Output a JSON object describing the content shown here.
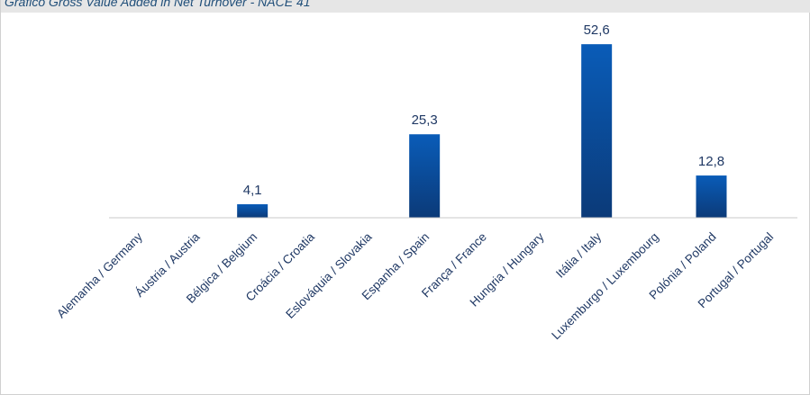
{
  "chart_data": {
    "type": "bar",
    "title": "Gráfico Gross Value Added in Net Turnover - NACE 41",
    "categories": [
      "Alemanha / Germany",
      "Áustria / Austria",
      "Bélgica / Belgium",
      "Croácia / Croatia",
      "Eslováquia / Slovakia",
      "Espanha / Spain",
      "França / France",
      "Hungria / Hungary",
      "Itália / Italy",
      "Luxemburgo / Luxembourg",
      "Polónia / Poland",
      "Portugal / Portugal"
    ],
    "values": [
      null,
      null,
      4.1,
      null,
      null,
      25.3,
      null,
      null,
      52.6,
      null,
      12.8,
      null
    ],
    "value_labels": [
      "",
      "",
      "4,1",
      "",
      "",
      "25,3",
      "",
      "",
      "52,6",
      "",
      "12,8",
      ""
    ],
    "ylim": [
      0,
      60
    ],
    "grid": false,
    "colors": {
      "bar_top": "#0a5cb8",
      "bar_bottom": "#0b3a78",
      "axis": "#c8c8c8",
      "title": "#1f4e79"
    }
  }
}
